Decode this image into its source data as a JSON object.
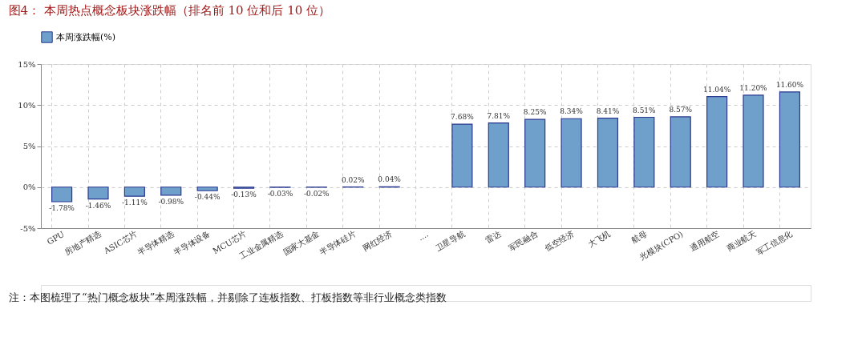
{
  "chart_data": {
    "type": "bar",
    "title": "图4：  本周热点概念板块涨跌幅（排名前 10 位和后 10 位）",
    "categories": [
      "GPU",
      "房地产精选",
      "ASIC芯片",
      "半导体精选",
      "半导体设备",
      "MCU芯片",
      "工业金属精选",
      "国家大基金",
      "半导体硅片",
      "网红经济",
      "....",
      "卫星导航",
      "雷达",
      "军民融合",
      "低空经济",
      "大飞机",
      "航母",
      "光模块(CPO)",
      "通用航空",
      "商业航天",
      "军工信息化"
    ],
    "series": [
      {
        "name": "本周涨跌幅(%)",
        "color": "#6f9fcb",
        "values": [
          -1.78,
          -1.46,
          -1.11,
          -0.98,
          -0.44,
          -0.13,
          -0.03,
          -0.02,
          0.02,
          0.04,
          null,
          7.68,
          7.81,
          8.25,
          8.34,
          8.41,
          8.51,
          8.57,
          11.04,
          11.2,
          11.6
        ],
        "value_labels": [
          "-1.78%",
          "-1.46%",
          "-1.11%",
          "-0.98%",
          "-0.44%",
          "-0.13%",
          "-0.03%",
          "-0.02%",
          "0.02%",
          "0.04%",
          null,
          "7.68%",
          "7.81%",
          "8.25%",
          "8.34%",
          "8.41%",
          "8.51%",
          "8.57%",
          "11.04%",
          "11.20%",
          "11.60%"
        ]
      }
    ],
    "ylim": [
      -5,
      15
    ],
    "yticks": [
      {
        "value": -5,
        "label": "-5%"
      },
      {
        "value": 0,
        "label": "0%"
      },
      {
        "value": 5,
        "label": "5%"
      },
      {
        "value": 10,
        "label": "10%"
      },
      {
        "value": 15,
        "label": "15%"
      }
    ],
    "grid": true,
    "legend": "top",
    "annotations": [
      "注：本图梳理了“热门概念板块”本周涨跌幅，并剔除了连板指数、打板指数等非行业概念类指数"
    ]
  }
}
